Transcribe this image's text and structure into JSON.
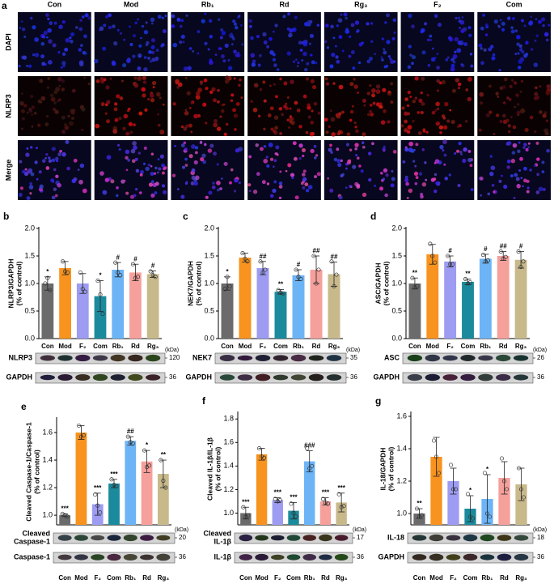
{
  "images": {
    "label": "a",
    "columns": [
      "Con",
      "Mod",
      "Rb₁",
      "Rd",
      "Rg₃",
      "F₂",
      "Com"
    ],
    "rows": [
      "DAPI",
      "NLRP3",
      "Merge"
    ]
  },
  "chart_data": [
    {
      "type": "bar",
      "label": "b",
      "ylabel": [
        "NLRP3/GAPDH",
        "(% of control)"
      ],
      "categories": [
        "Con",
        "Mod",
        "F₂",
        "Com",
        "Rb₁",
        "Rd",
        "Rg₃"
      ],
      "colors": [
        "#6b6b6b",
        "#f7931e",
        "#9d9cf2",
        "#1b8a9c",
        "#6cb4f6",
        "#f5a09b",
        "#c8b98b"
      ],
      "values": [
        1.0,
        1.28,
        1.0,
        0.77,
        1.25,
        1.2,
        1.17
      ],
      "errors": [
        0.12,
        0.12,
        0.18,
        0.28,
        0.13,
        0.15,
        0.06
      ],
      "points": [
        [
          1.0,
          1.1,
          0.88
        ],
        [
          1.4,
          1.22,
          1.2
        ],
        [
          1.2,
          0.9,
          0.85
        ],
        [
          1.05,
          0.8,
          0.45
        ],
        [
          1.38,
          1.2,
          1.15
        ],
        [
          1.35,
          1.1,
          1.12
        ],
        [
          1.22,
          1.15,
          1.12
        ]
      ],
      "significance": [
        "*",
        null,
        null,
        "*",
        "#",
        "#",
        "#"
      ],
      "ylim": [
        0,
        2.0
      ],
      "yticks": [
        {
          "value": 0,
          "label": "0.0"
        },
        0.5,
        {
          "value": 1,
          "label": "1.0"
        },
        1.5,
        {
          "value": 2,
          "label": "2.0"
        }
      ],
      "kda_unit": "(kDa)",
      "blots": [
        {
          "label": [
            "NLRP3"
          ],
          "kda": 120
        },
        {
          "label": [
            "GAPDH"
          ],
          "kda": 36
        }
      ]
    },
    {
      "type": "bar",
      "label": "c",
      "ylabel": [
        "NEK7/GAPDH",
        "(% of control)"
      ],
      "categories": [
        "Con",
        "Mod",
        "F₂",
        "Com",
        "Rb₁",
        "Rd",
        "Rg₃"
      ],
      "colors": [
        "#6b6b6b",
        "#f7931e",
        "#9d9cf2",
        "#1b8a9c",
        "#6cb4f6",
        "#f5a09b",
        "#c8b98b"
      ],
      "values": [
        1.0,
        1.47,
        1.28,
        0.85,
        1.15,
        1.25,
        1.17
      ],
      "errors": [
        0.12,
        0.08,
        0.12,
        0.04,
        0.1,
        0.25,
        0.22
      ],
      "points": [
        [
          0.9,
          1.12,
          0.95
        ],
        [
          1.55,
          1.45,
          1.4
        ],
        [
          1.4,
          1.2,
          1.25
        ],
        [
          0.88,
          0.83,
          0.82
        ],
        [
          1.25,
          1.12,
          1.08
        ],
        [
          1.5,
          1.0,
          1.25
        ],
        [
          1.4,
          0.95,
          1.16
        ]
      ],
      "significance": [
        "*",
        null,
        "##",
        "**",
        "#",
        "##",
        "##"
      ],
      "ylim": [
        0,
        2.0
      ],
      "yticks": [
        {
          "value": 0,
          "label": "0.0"
        },
        0.5,
        {
          "value": 1,
          "label": "1.0"
        },
        1.5,
        {
          "value": 2,
          "label": "2.0"
        }
      ],
      "kda_unit": "(kDa)",
      "blots": [
        {
          "label": [
            "NEK7"
          ],
          "kda": 35
        },
        {
          "label": [
            "GAPDH"
          ],
          "kda": 36
        }
      ]
    },
    {
      "type": "bar",
      "label": "d",
      "ylabel": [
        "ASC/GAPDH",
        "(% of control)"
      ],
      "categories": [
        "Con",
        "Mod",
        "F₂",
        "Com",
        "Rb₁",
        "Rd",
        "Rg₃"
      ],
      "colors": [
        "#6b6b6b",
        "#f7931e",
        "#9d9cf2",
        "#1b8a9c",
        "#6cb4f6",
        "#f5a09b",
        "#c8b98b"
      ],
      "values": [
        1.0,
        1.53,
        1.4,
        1.03,
        1.45,
        1.5,
        1.43
      ],
      "errors": [
        0.1,
        0.18,
        0.1,
        0.05,
        0.08,
        0.08,
        0.15
      ],
      "points": [
        [
          1.1,
          0.93,
          0.95
        ],
        [
          1.72,
          1.5,
          1.38
        ],
        [
          1.5,
          1.35,
          1.35
        ],
        [
          1.08,
          1.0,
          1.02
        ],
        [
          1.52,
          1.4,
          1.42
        ],
        [
          1.58,
          1.45,
          1.48
        ],
        [
          1.58,
          1.3,
          1.4
        ]
      ],
      "significance": [
        "**",
        null,
        "#",
        "**",
        "#",
        "##",
        "#"
      ],
      "ylim": [
        0,
        2.0
      ],
      "yticks": [
        {
          "value": 0,
          "label": "0.0"
        },
        0.5,
        {
          "value": 1,
          "label": "1.0"
        },
        1.5,
        {
          "value": 2,
          "label": "2.0"
        }
      ],
      "kda_unit": "(kDa)",
      "blots": [
        {
          "label": [
            "ASC"
          ],
          "kda": 26
        },
        {
          "label": [
            "GAPDH"
          ],
          "kda": 36
        }
      ]
    },
    {
      "type": "bar",
      "label": "e",
      "ylabel": [
        "Cleaved Caspase-1/Caspase-1",
        "(% of control)"
      ],
      "categories": [
        "Con",
        "Mod",
        "F₂",
        "Com",
        "Rb₁",
        "Rd",
        "Rg₃"
      ],
      "colors": [
        "#6b6b6b",
        "#f7931e",
        "#9d9cf2",
        "#1b8a9c",
        "#6cb4f6",
        "#f5a09b",
        "#c8b98b"
      ],
      "values": [
        1.0,
        1.6,
        1.08,
        1.23,
        1.54,
        1.39,
        1.3
      ],
      "errors": [
        0.01,
        0.05,
        0.08,
        0.03,
        0.03,
        0.08,
        0.1
      ],
      "points": [
        [
          1.01,
          1.0,
          0.99
        ],
        [
          1.65,
          1.57,
          1.58
        ],
        [
          1.15,
          1.07,
          1.02
        ],
        [
          1.26,
          1.22,
          1.21
        ],
        [
          1.57,
          1.53,
          1.52
        ],
        [
          1.47,
          1.35,
          1.36
        ],
        [
          1.4,
          1.25,
          1.2
        ]
      ],
      "significance": [
        "***",
        null,
        "***",
        "***",
        "##",
        "*",
        "**"
      ],
      "ylim": [
        0.93,
        1.7
      ],
      "yticks": [
        {
          "value": 1,
          "label": "1.0"
        },
        1.2,
        1.4,
        1.6
      ],
      "kda_unit": "(kDa)",
      "blots": [
        {
          "label": [
            "Cleaved",
            "Caspase-1"
          ],
          "kda": 20
        },
        {
          "label": [
            "Caspase-1"
          ],
          "kda": 36
        }
      ]
    },
    {
      "type": "bar",
      "label": "f",
      "ylabel": [
        "Cleaved IL-1β/IL-1β",
        "(% of control)"
      ],
      "categories": [
        "Con",
        "Mod",
        "F₂",
        "Com",
        "Rb₁",
        "Rd",
        "Rg₃"
      ],
      "colors": [
        "#6b6b6b",
        "#f7931e",
        "#9d9cf2",
        "#1b8a9c",
        "#6cb4f6",
        "#f5a09b",
        "#c8b98b"
      ],
      "values": [
        1.0,
        1.5,
        1.11,
        1.02,
        1.44,
        1.1,
        1.09
      ],
      "errors": [
        0.05,
        0.05,
        0.02,
        0.07,
        0.09,
        0.03,
        0.08
      ],
      "points": [
        [
          1.05,
          0.97,
          0.98
        ],
        [
          1.55,
          1.48,
          1.47
        ],
        [
          1.12,
          1.1,
          1.11
        ],
        [
          1.08,
          1.0,
          0.97
        ],
        [
          1.55,
          1.38,
          1.4
        ],
        [
          1.12,
          1.09,
          1.08
        ],
        [
          1.16,
          1.05,
          1.06
        ]
      ],
      "significance": [
        "***",
        null,
        "***",
        "***",
        "###",
        "***",
        "***"
      ],
      "ylim": [
        0.9,
        1.85
      ],
      "yticks": [
        {
          "value": 1,
          "label": "1.0"
        },
        1.2,
        1.4,
        1.6,
        1.8
      ],
      "kda_unit": "(kDa)",
      "blots": [
        {
          "label": [
            "Cleaved",
            "IL-1β"
          ],
          "kda": 17
        },
        {
          "label": [
            "IL-1β"
          ],
          "kda": 36
        }
      ]
    },
    {
      "type": "bar",
      "label": "g",
      "ylabel": [
        "IL-18/GAPDH",
        "(% of control)"
      ],
      "categories": [
        "Con",
        "Mod",
        "F₂",
        "Com",
        "Rb₁",
        "Rd",
        "Rg₃"
      ],
      "colors": [
        "#6b6b6b",
        "#f7931e",
        "#9d9cf2",
        "#1b8a9c",
        "#6cb4f6",
        "#f5a09b",
        "#c8b98b"
      ],
      "values": [
        1.0,
        1.35,
        1.2,
        1.03,
        1.09,
        1.22,
        1.18
      ],
      "errors": [
        0.03,
        0.12,
        0.08,
        0.08,
        0.15,
        0.1,
        0.1
      ],
      "points": [
        [
          1.03,
          0.98,
          0.99
        ],
        [
          1.45,
          1.35,
          1.25
        ],
        [
          1.3,
          1.15,
          1.15
        ],
        [
          1.12,
          0.98,
          0.97
        ],
        [
          1.25,
          1.0,
          0.98
        ],
        [
          1.34,
          1.2,
          1.15
        ],
        [
          1.28,
          1.15,
          1.1
        ]
      ],
      "significance": [
        "**",
        null,
        null,
        "*",
        "*",
        null,
        null
      ],
      "ylim": [
        0.93,
        1.62
      ],
      "yticks": [
        {
          "value": 1,
          "label": "1.0"
        },
        1.2,
        1.4,
        1.6
      ],
      "kda_unit": "(kDa)",
      "blots": [
        {
          "label": [
            "IL-18"
          ],
          "kda": 18
        },
        {
          "label": [
            "GAPDH"
          ],
          "kda": 36
        }
      ]
    }
  ]
}
